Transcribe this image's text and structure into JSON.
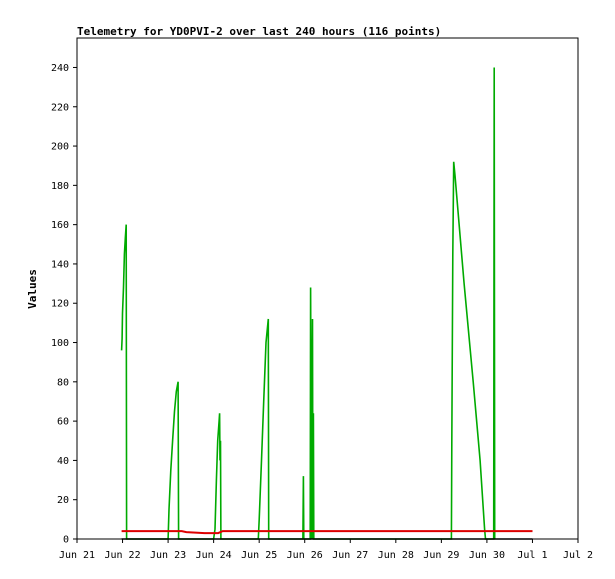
{
  "chart_data": {
    "type": "line",
    "title": "Telemetry for YD0PVI-2 over last 240 hours (116 points)",
    "ylabel": "Values",
    "xlabel": "",
    "xlim": [
      0,
      11
    ],
    "ylim": [
      0,
      255
    ],
    "x_ticks": [
      {
        "x": 0,
        "label": "Jun 21"
      },
      {
        "x": 1,
        "label": "Jun 22"
      },
      {
        "x": 2,
        "label": "Jun 23"
      },
      {
        "x": 3,
        "label": "Jun 24"
      },
      {
        "x": 4,
        "label": "Jun 25"
      },
      {
        "x": 5,
        "label": "Jun 26"
      },
      {
        "x": 6,
        "label": "Jun 27"
      },
      {
        "x": 7,
        "label": "Jun 28"
      },
      {
        "x": 8,
        "label": "Jun 29"
      },
      {
        "x": 9,
        "label": "Jun 30"
      },
      {
        "x": 10,
        "label": "Jul 1"
      },
      {
        "x": 11,
        "label": "Jul 2"
      }
    ],
    "y_ticks": [
      0,
      20,
      40,
      60,
      80,
      100,
      120,
      140,
      160,
      180,
      200,
      220,
      240
    ],
    "grid": false,
    "series": [
      {
        "color": "#00aa00",
        "points": [
          [
            0.98,
            96
          ],
          [
            0.99,
            102
          ],
          [
            1.0,
            115
          ],
          [
            1.02,
            128
          ],
          [
            1.04,
            145
          ],
          [
            1.06,
            153
          ],
          [
            1.08,
            160
          ],
          [
            1.09,
            0
          ],
          [
            2.0,
            0
          ],
          [
            2.02,
            15
          ],
          [
            2.06,
            35
          ],
          [
            2.1,
            50
          ],
          [
            2.14,
            65
          ],
          [
            2.18,
            75
          ],
          [
            2.22,
            80
          ],
          [
            2.23,
            0
          ],
          [
            3.0,
            0
          ],
          [
            3.03,
            5
          ],
          [
            3.06,
            30
          ],
          [
            3.09,
            50
          ],
          [
            3.12,
            60
          ],
          [
            3.13,
            64
          ],
          [
            3.14,
            40
          ],
          [
            3.15,
            50
          ],
          [
            3.16,
            0
          ],
          [
            3.98,
            0
          ],
          [
            4.0,
            10
          ],
          [
            4.05,
            40
          ],
          [
            4.1,
            70
          ],
          [
            4.15,
            100
          ],
          [
            4.2,
            112
          ],
          [
            4.21,
            0
          ],
          [
            4.96,
            0
          ],
          [
            4.97,
            32
          ],
          [
            4.98,
            0
          ],
          [
            5.12,
            0
          ],
          [
            5.13,
            128
          ],
          [
            5.15,
            0
          ],
          [
            5.17,
            112
          ],
          [
            5.18,
            0
          ],
          [
            5.19,
            64
          ],
          [
            5.2,
            0
          ],
          [
            8.22,
            0
          ],
          [
            8.23,
            48
          ],
          [
            8.25,
            145
          ],
          [
            8.27,
            192
          ],
          [
            8.3,
            185
          ],
          [
            8.5,
            130
          ],
          [
            8.7,
            80
          ],
          [
            8.85,
            40
          ],
          [
            8.95,
            5
          ],
          [
            8.97,
            0
          ],
          [
            9.15,
            0
          ],
          [
            9.16,
            240
          ],
          [
            9.17,
            0
          ]
        ]
      },
      {
        "color": "#dd0000",
        "points": [
          [
            0.98,
            4
          ],
          [
            2.3,
            4
          ],
          [
            2.4,
            3.5
          ],
          [
            2.8,
            3
          ],
          [
            3.1,
            3
          ],
          [
            3.2,
            4
          ],
          [
            10.0,
            4
          ]
        ]
      },
      {
        "color": "#000000",
        "points": [
          [
            0.98,
            0
          ],
          [
            10.0,
            0
          ]
        ]
      }
    ]
  }
}
